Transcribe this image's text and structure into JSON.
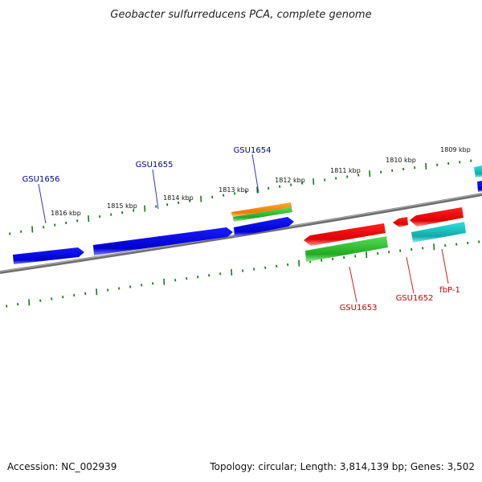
{
  "title": "Geobacter sulfurreducens PCA, complete genome",
  "footer": {
    "accession": "Accession: NC_002939",
    "summary": "Topology: circular; Length: 3,814,139 bp; Genes: 3,502"
  },
  "scale_labels": [
    "1816 kbp",
    "1815 kbp",
    "1814 kbp",
    "1813 kbp",
    "1812 kbp",
    "1811 kbp",
    "1810 kbp",
    "1809 kbp"
  ],
  "colors": {
    "backbone": "#7a7a7a",
    "ticks": "#1a7a1a",
    "blue": "#0000dd",
    "orange": "#ff8800",
    "green": "#33bb33",
    "red": "#ee0000",
    "cyan": "#11bbbb",
    "label_blue": "#000099",
    "label_red": "#cc0000"
  },
  "genes": [
    {
      "name": "GSU1656",
      "color": "blue",
      "strand": "+"
    },
    {
      "name": "GSU1655",
      "color": "blue",
      "strand": "+"
    },
    {
      "name": "GSU1654",
      "color": "blue",
      "strand": "+"
    },
    {
      "name": "GSU1653",
      "color": "red",
      "strand": "-"
    },
    {
      "name": "GSU1652",
      "color": "red",
      "strand": "-"
    },
    {
      "name": "fbP-1",
      "color": "red",
      "strand": "-"
    }
  ]
}
